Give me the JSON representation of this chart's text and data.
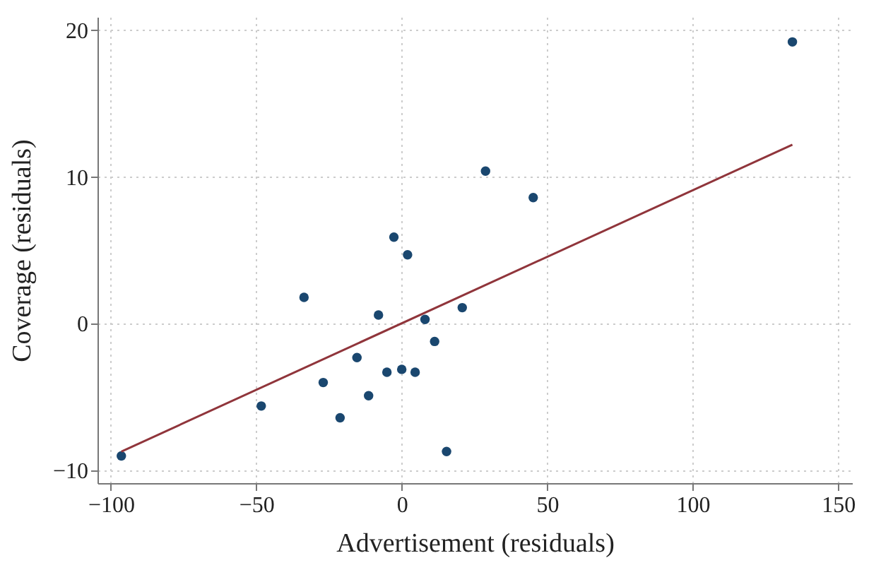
{
  "chart_data": {
    "type": "scatter",
    "xlabel": "Advertisement (residuals)",
    "ylabel": "Coverage (residuals)",
    "xlim": [
      -104.6,
      154.8
    ],
    "ylim": [
      -10.85,
      20.9
    ],
    "xticks": [
      -100,
      -50,
      0,
      50,
      100,
      150
    ],
    "yticks": [
      -10,
      0,
      10,
      20
    ],
    "grid": true,
    "marker": "circle",
    "series": [
      {
        "color": "#1a476f",
        "x": [
          -96.4,
          -48.3,
          -33.6,
          -27.0,
          -21.2,
          -15.4,
          -11.4,
          -8.0,
          -5.1,
          -2.7,
          0,
          2.0,
          4.6,
          8.0,
          11.3,
          15.4,
          20.8,
          28.8,
          45.2,
          134.3
        ],
        "values": [
          -9.0,
          -5.6,
          1.8,
          -4.0,
          -6.4,
          -2.3,
          -4.9,
          0.6,
          -3.3,
          5.9,
          -3.1,
          4.7,
          -3.3,
          0.3,
          -1.2,
          -8.7,
          1.1,
          10.4,
          8.6,
          19.2
        ]
      },
      {
        "type": "line",
        "marker": "none",
        "color": "#90353b",
        "x": [
          -96.4,
          134.3
        ],
        "values": [
          -8.7,
          12.2
        ]
      }
    ]
  }
}
